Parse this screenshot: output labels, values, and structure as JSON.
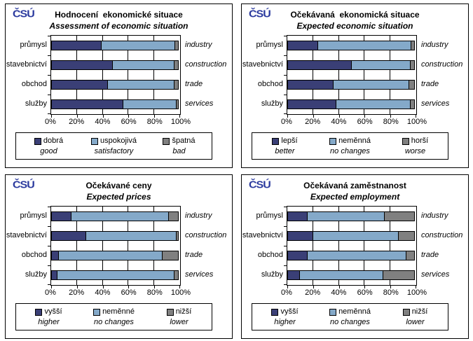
{
  "logo": {
    "text": "ČSÚ"
  },
  "colors": {
    "dark_blue": "#3A3F76",
    "light_blue": "#84A9C9",
    "gray": "#808080",
    "logo_blue": "#2B3A9E",
    "border": "#000000"
  },
  "chart_data": [
    {
      "type": "bar",
      "stacked": true,
      "orientation": "horizontal",
      "title_cs": "Hodnocení  ekonomické situace",
      "title_en": "Assessment of economic situation",
      "categories_cs": [
        "průmysl",
        "stavebnictví",
        "obchod",
        "služby"
      ],
      "categories_en": [
        "industry",
        "construction",
        "trade",
        "services"
      ],
      "xlim": [
        0,
        100
      ],
      "x_ticks": [
        "0%",
        "20%",
        "40%",
        "60%",
        "80%",
        "100%"
      ],
      "grid": true,
      "legend_position": "bottom",
      "series": [
        {
          "label_cs": "dobrá",
          "label_en": "good",
          "color_key": "dark_blue",
          "values": [
            39,
            48,
            44,
            56
          ]
        },
        {
          "label_cs": "uspokojivá",
          "label_en": "satisfactory",
          "color_key": "light_blue",
          "values": [
            58,
            48,
            52,
            42
          ]
        },
        {
          "label_cs": "špatná",
          "label_en": "bad",
          "color_key": "gray",
          "values": [
            3,
            4,
            4,
            2
          ]
        }
      ]
    },
    {
      "type": "bar",
      "stacked": true,
      "orientation": "horizontal",
      "title_cs": "Očekávaná  ekonomická situace",
      "title_en": "Expected economic situation",
      "categories_cs": [
        "průmysl",
        "stavebnictví",
        "obchod",
        "služby"
      ],
      "categories_en": [
        "industry",
        "construction",
        "trade",
        "services"
      ],
      "xlim": [
        0,
        100
      ],
      "x_ticks": [
        "0%",
        "20%",
        "40%",
        "60%",
        "80%",
        "100%"
      ],
      "grid": true,
      "legend_position": "bottom",
      "series": [
        {
          "label_cs": "lepší",
          "label_en": "better",
          "color_key": "dark_blue",
          "values": [
            24,
            50,
            36,
            38
          ]
        },
        {
          "label_cs": "neměnná",
          "label_en": "no changes",
          "color_key": "light_blue",
          "values": [
            73,
            46,
            59,
            58
          ]
        },
        {
          "label_cs": "horší",
          "label_en": "worse",
          "color_key": "gray",
          "values": [
            3,
            4,
            5,
            4
          ]
        }
      ]
    },
    {
      "type": "bar",
      "stacked": true,
      "orientation": "horizontal",
      "title_cs": "Očekávané ceny",
      "title_en": "Expected prices",
      "categories_cs": [
        "průmysl",
        "stavebnictví",
        "obchod",
        "služby"
      ],
      "categories_en": [
        "industry",
        "construction",
        "trade",
        "services"
      ],
      "xlim": [
        0,
        100
      ],
      "x_ticks": [
        "0%",
        "20%",
        "40%",
        "60%",
        "80%",
        "100%"
      ],
      "grid": true,
      "legend_position": "bottom",
      "series": [
        {
          "label_cs": "vyšší",
          "label_en": "higher",
          "color_key": "dark_blue",
          "values": [
            16,
            27,
            6,
            5
          ]
        },
        {
          "label_cs": "neměnné",
          "label_en": "no changes",
          "color_key": "light_blue",
          "values": [
            76,
            71,
            81,
            91
          ]
        },
        {
          "label_cs": "nižší",
          "label_en": "lower",
          "color_key": "gray",
          "values": [
            8,
            2,
            13,
            4
          ]
        }
      ]
    },
    {
      "type": "bar",
      "stacked": true,
      "orientation": "horizontal",
      "title_cs": "Očekávaná zaměstnanost",
      "title_en": "Expected employment",
      "categories_cs": [
        "průmysl",
        "stavebnictví",
        "obchod",
        "služby"
      ],
      "categories_en": [
        "industry",
        "construction",
        "trade",
        "services"
      ],
      "xlim": [
        0,
        100
      ],
      "x_ticks": [
        "0%",
        "20%",
        "40%",
        "60%",
        "80%",
        "100%"
      ],
      "grid": true,
      "legend_position": "bottom",
      "series": [
        {
          "label_cs": "vyšší",
          "label_en": "higher",
          "color_key": "dark_blue",
          "values": [
            16,
            20,
            16,
            10
          ]
        },
        {
          "label_cs": "neměnná",
          "label_en": "no changes",
          "color_key": "light_blue",
          "values": [
            60,
            67,
            77,
            65
          ]
        },
        {
          "label_cs": "nižší",
          "label_en": "lower",
          "color_key": "gray",
          "values": [
            24,
            13,
            7,
            25
          ]
        }
      ]
    }
  ]
}
